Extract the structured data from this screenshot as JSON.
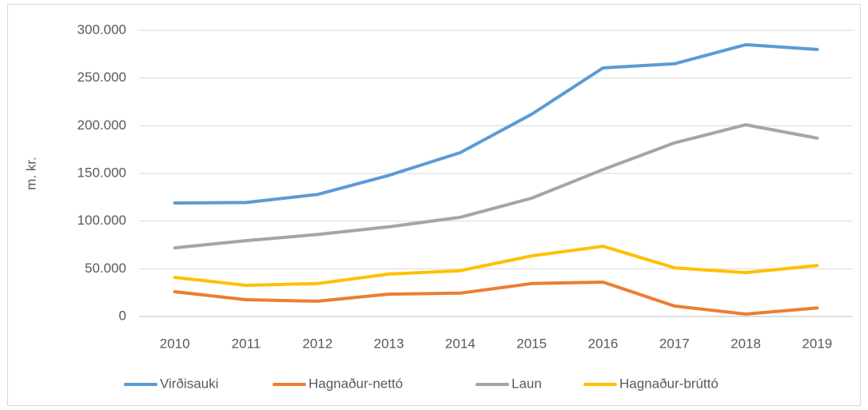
{
  "chart_data": {
    "type": "line",
    "y_label": "m. kr.",
    "categories": [
      "2010",
      "2011",
      "2012",
      "2013",
      "2014",
      "2015",
      "2016",
      "2017",
      "2018",
      "2019"
    ],
    "series": [
      {
        "name": "Virðisauki",
        "color": "#5b9bd5",
        "values": [
          119000,
          119500,
          128000,
          148000,
          171800,
          212000,
          260600,
          265000,
          285000,
          280000
        ]
      },
      {
        "name": "Hagnaður-nettó",
        "color": "#ed7d31",
        "values": [
          26000,
          17600,
          16000,
          23500,
          24500,
          34500,
          36000,
          11000,
          2500,
          9000
        ]
      },
      {
        "name": "Laun",
        "color": "#a5a5a5",
        "values": [
          72000,
          79500,
          86000,
          94000,
          104000,
          124000,
          154000,
          182000,
          201000,
          187000
        ]
      },
      {
        "name": "Hagnaður-brúttó",
        "color": "#ffc000",
        "values": [
          41000,
          32700,
          34500,
          44500,
          48000,
          63500,
          73700,
          51000,
          46000,
          53500
        ]
      }
    ],
    "ylim": [
      0,
      300000
    ],
    "yticks": [
      0,
      {
        "value": 50000,
        "label": "50.000"
      },
      {
        "value": 100000,
        "label": "100.000"
      },
      {
        "value": 150000,
        "label": "150.000"
      },
      {
        "value": 200000,
        "label": "200.000"
      },
      {
        "value": 250000,
        "label": "250.000"
      },
      {
        "value": 300000,
        "label": "300.000"
      }
    ],
    "grid": true,
    "legend": "bottom"
  }
}
